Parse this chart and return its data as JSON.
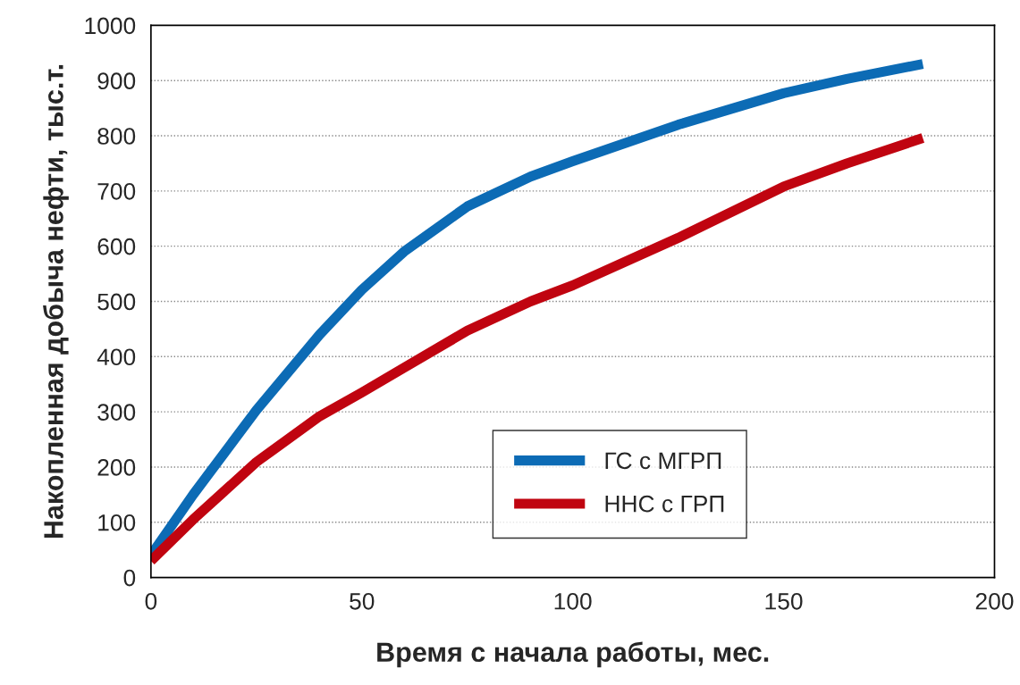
{
  "chart_data": {
    "type": "line",
    "xlabel": "Время с начала работы, мес.",
    "ylabel": "Накопленная добыча нефти, тыс.т.",
    "xlim": [
      0,
      200
    ],
    "xticks": [
      0,
      50,
      100,
      150,
      200
    ],
    "ylim": [
      0,
      1000
    ],
    "yticks": [
      0,
      100,
      200,
      300,
      400,
      500,
      600,
      700,
      800,
      900,
      1000
    ],
    "grid": "y",
    "legend": "bottom right",
    "marker": "none",
    "line_style": "solid",
    "series": [
      {
        "name": "ГС с МГРП",
        "color": "#0c6bb5",
        "x": [
          0,
          10,
          25,
          40,
          50,
          60,
          75,
          90,
          100,
          125,
          150,
          165,
          183
        ],
        "values": [
          40,
          150,
          303,
          440,
          521,
          590,
          672,
          726,
          754,
          820,
          877,
          903,
          930
        ]
      },
      {
        "name": "ННС с ГРП",
        "color": "#c00410",
        "x": [
          0,
          10,
          25,
          40,
          50,
          60,
          75,
          90,
          100,
          125,
          150,
          165,
          183
        ],
        "values": [
          30,
          105,
          209,
          292,
          335,
          380,
          447,
          500,
          529,
          615,
          708,
          750,
          796
        ]
      }
    ]
  }
}
